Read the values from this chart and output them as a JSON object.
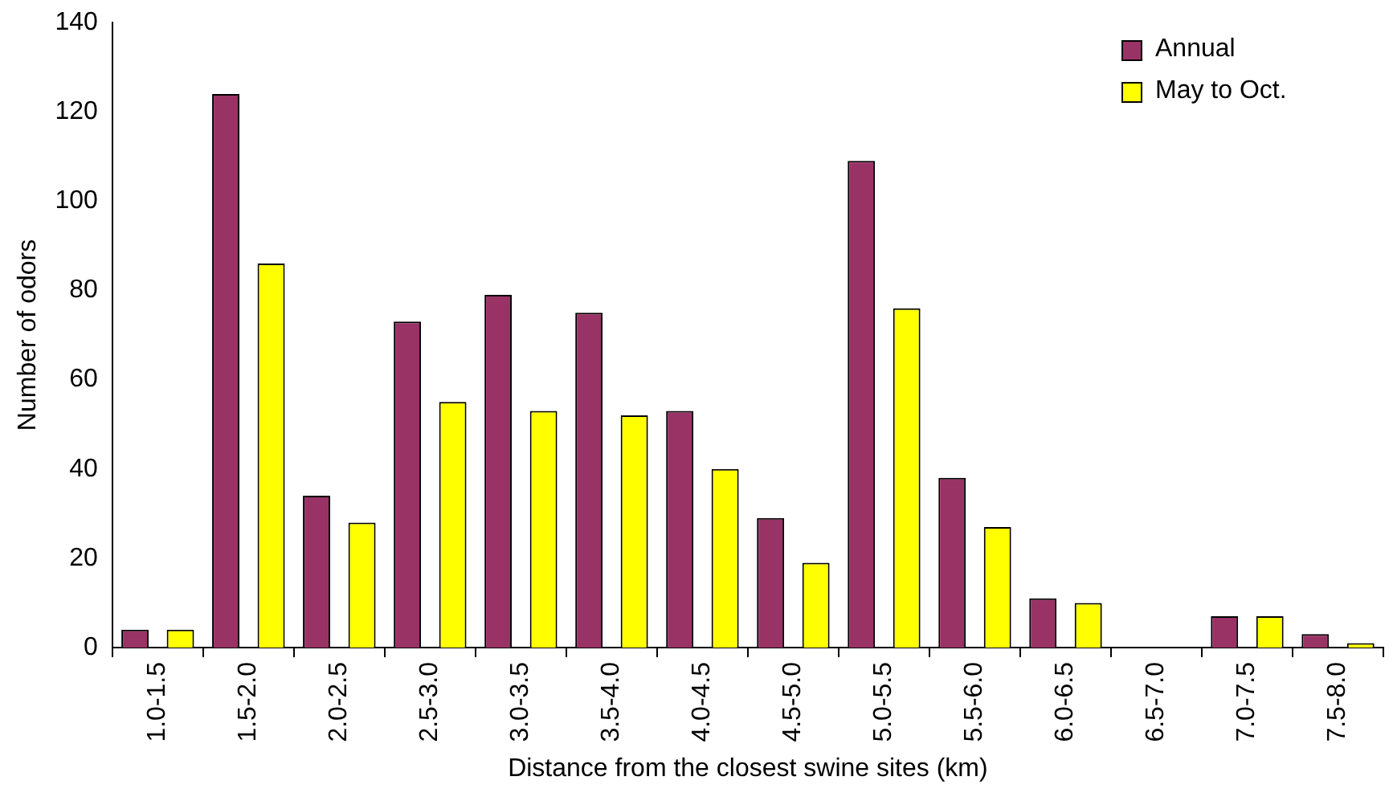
{
  "chart_data": {
    "type": "bar",
    "xlabel": "Distance from the closest swine sites (km)",
    "ylabel": "Number of odors",
    "categories": [
      "1.0-1.5",
      "1.5-2.0",
      "2.0-2.5",
      "2.5-3.0",
      "3.0-3.5",
      "3.5-4.0",
      "4.0-4.5",
      "4.5-5.0",
      "5.0-5.5",
      "5.5-6.0",
      "6.0-6.5",
      "6.5-7.0",
      "7.0-7.5",
      "7.5-8.0"
    ],
    "series": [
      {
        "name": "Annual",
        "color": "#993366",
        "values": [
          4,
          124,
          34,
          73,
          79,
          75,
          53,
          29,
          109,
          38,
          11,
          0,
          7,
          3
        ]
      },
      {
        "name": "May to Oct.",
        "color": "#ffff00",
        "values": [
          4,
          86,
          28,
          55,
          53,
          52,
          40,
          19,
          76,
          27,
          10,
          0,
          7,
          1
        ]
      }
    ],
    "ylim": [
      0,
      140
    ],
    "yticks": [
      0,
      20,
      40,
      60,
      80,
      100,
      120,
      140
    ],
    "grid": false,
    "legend": "top right"
  }
}
